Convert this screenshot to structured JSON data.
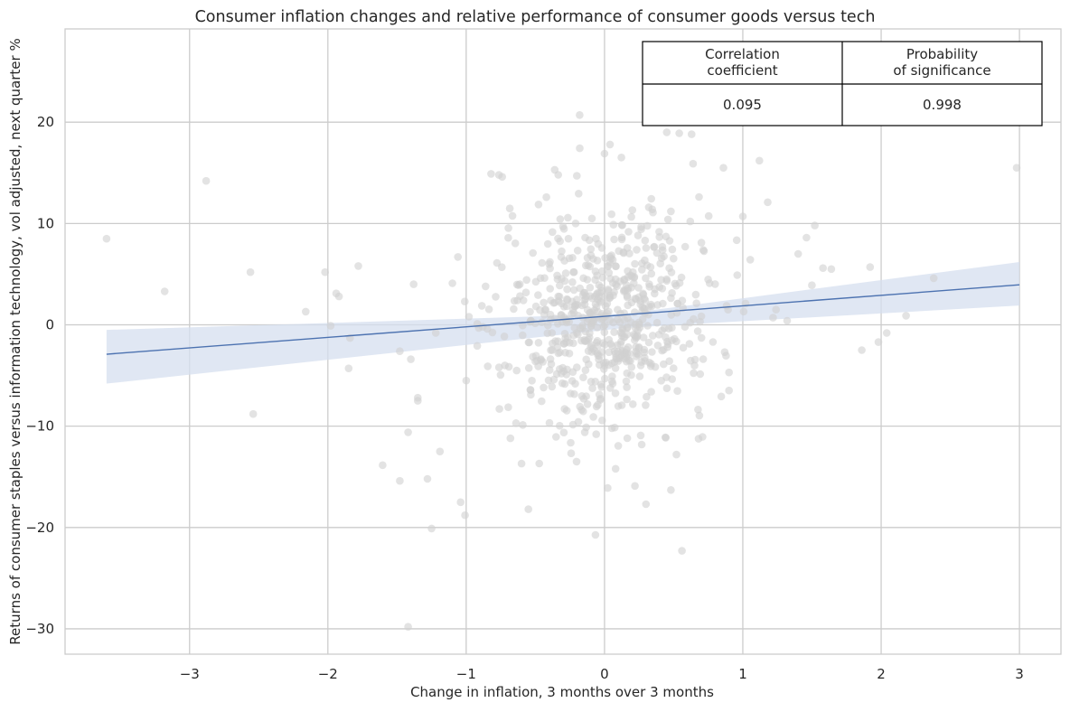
{
  "chart_data": {
    "type": "scatter",
    "title": "Consumer inflation changes and relative performance of consumer goods versus tech",
    "xlabel": "Change in inflation, 3 months over 3 months",
    "ylabel": "Returns of consumer staples versus information technology, vol adjusted, next quarter %",
    "xlim": [
      -3.9,
      3.3
    ],
    "ylim": [
      -32.5,
      29.2
    ],
    "xticks": [
      -3,
      -2,
      -1,
      0,
      1,
      2,
      3
    ],
    "yticks": [
      -30,
      -20,
      -10,
      0,
      10,
      20
    ],
    "grid": true,
    "colors": {
      "points": "#d0d0d0",
      "fit_line": "#4c72b0",
      "confidence_band": "#d5dfef",
      "grid": "#cccccc"
    },
    "regression": {
      "x": [
        -3.6,
        3.0
      ],
      "y": [
        -2.9,
        3.95
      ],
      "ci_lower": [
        -5.8,
        1.9
      ],
      "ci_upper": [
        -0.5,
        6.2
      ],
      "ci_mid_lower": -0.3,
      "ci_mid_upper": 1.1,
      "ci_mid_x": 0.15
    },
    "table": {
      "headers": [
        "Correlation\ncoefficient",
        "Probability\nof significance"
      ],
      "values": [
        "0.095",
        "0.998"
      ]
    },
    "points": {
      "x": [
        -3.6,
        -3.18,
        -2.88,
        -2.56,
        -2.54,
        -2.16,
        -2.02,
        -1.98,
        -1.94,
        -1.92,
        -1.85,
        -1.84,
        -1.78,
        -1.48,
        -1.42,
        -1.42,
        -1.38,
        -1.35,
        -1.35,
        -1.28,
        -1.25,
        -1.19,
        -1.1,
        -1.06,
        -1.04,
        -1.01,
        -1.0,
        -0.98,
        -0.92,
        -0.86,
        -0.76,
        -0.72,
        -0.68,
        -0.64,
        -0.6,
        -0.55,
        -0.5,
        -0.46,
        -0.42,
        -0.38,
        -0.34,
        -0.3,
        -0.22,
        -0.2,
        -0.14,
        -0.1,
        -0.06,
        0.0,
        0.04,
        0.08,
        0.14,
        0.22,
        0.3,
        0.36,
        0.44,
        0.48,
        0.52,
        0.56,
        0.62,
        0.7,
        0.76,
        0.86,
        0.9,
        0.96,
        1.0,
        1.02,
        1.12,
        1.18,
        1.24,
        1.32,
        1.4,
        1.46,
        1.52,
        1.58,
        1.64,
        1.86,
        1.92,
        1.98,
        2.04,
        2.18,
        2.38,
        2.98,
        0.45,
        0.54,
        0.63,
        -0.18,
        -0.2,
        0.06,
        0.08,
        -0.82,
        -0.74,
        -0.36,
        0.32,
        0.48,
        0.64,
        -0.4,
        -1.22,
        -1.48,
        -1.4,
        -0.38,
        -0.88
      ],
      "y": [
        8.5,
        3.3,
        14.2,
        5.2,
        -8.8,
        1.3,
        5.2,
        -0.1,
        3.1,
        2.8,
        -4.3,
        -1.3,
        5.8,
        -15.4,
        -29.8,
        -10.6,
        4.0,
        -7.2,
        -7.5,
        -15.2,
        -20.1,
        -12.5,
        4.1,
        6.7,
        -17.5,
        2.3,
        -5.5,
        0.8,
        0.1,
        3.8,
        -8.3,
        -4.0,
        -11.2,
        -9.7,
        -13.7,
        -18.2,
        -3.6,
        -3.4,
        12.6,
        -6.1,
        4.5,
        9.7,
        5.2,
        -4.2,
        8.6,
        -2.2,
        -10.8,
        16.9,
        17.8,
        -14.2,
        3.3,
        -15.9,
        -17.7,
        7.7,
        -11.1,
        -16.3,
        -12.8,
        -22.3,
        10.2,
        8.1,
        4.1,
        15.5,
        -4.7,
        4.9,
        10.7,
        2.1,
        16.2,
        12.1,
        1.5,
        0.4,
        7.0,
        8.6,
        9.8,
        5.6,
        5.5,
        -2.5,
        5.7,
        -1.7,
        -0.8,
        0.9,
        4.6,
        15.5,
        19.0,
        18.9,
        18.8,
        20.7,
        14.7,
        6.4,
        4.5,
        14.9,
        14.6,
        15.3,
        11.6,
        11.2,
        15.9,
        6.0,
        -0.8,
        -2.6,
        -3.4,
        -0.8,
        -0.2
      ]
    },
    "cloud_seed": 7,
    "cloud_count": 640
  }
}
